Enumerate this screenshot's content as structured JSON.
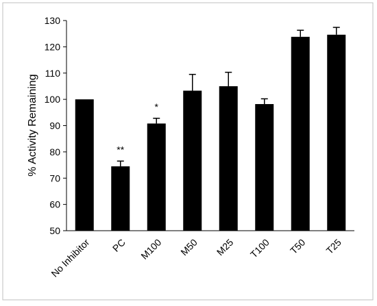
{
  "chart_data": {
    "type": "bar",
    "ylabel": "% Activity Remaining",
    "xlabel": "",
    "ylim": [
      50,
      130
    ],
    "yticks": [
      50,
      60,
      70,
      80,
      90,
      100,
      110,
      120,
      130
    ],
    "categories": [
      "No Inhibitor",
      "PC",
      "M100",
      "M50",
      "M25",
      "T100",
      "T50",
      "T25"
    ],
    "values": [
      100,
      74.5,
      90.8,
      103.3,
      105,
      98.2,
      123.8,
      124.6
    ],
    "errors": [
      0,
      2,
      2,
      6.2,
      5.3,
      2,
      2.5,
      2.8
    ],
    "annotations": [
      "",
      "**",
      "*",
      "",
      "",
      "",
      "",
      ""
    ],
    "grid": false,
    "bar_color": "#000000"
  }
}
